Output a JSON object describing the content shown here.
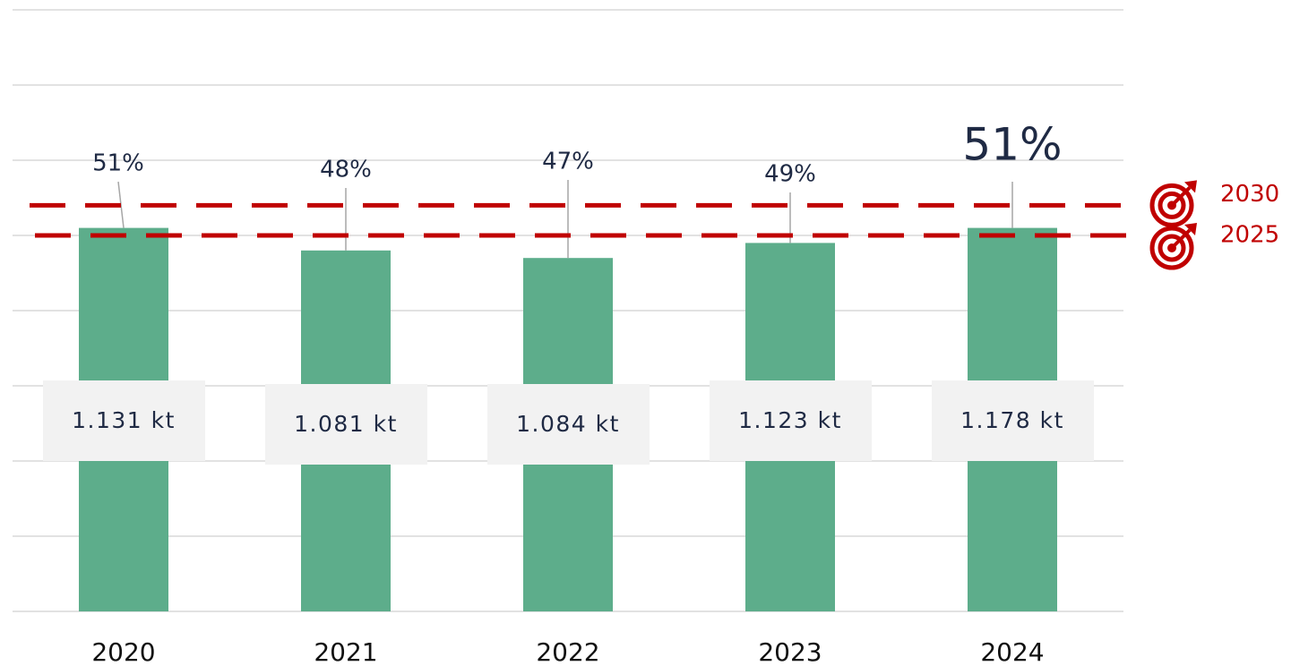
{
  "chart_data": {
    "type": "bar",
    "categories": [
      "2020",
      "2021",
      "2022",
      "2023",
      "2024"
    ],
    "values": [
      51,
      48,
      47,
      49,
      51
    ],
    "value_labels": [
      "51%",
      "48%",
      "47%",
      "49%",
      "51%"
    ],
    "amount_labels": [
      "1.131 kt",
      "1.081 kt",
      "1.084 kt",
      "1.123 kt",
      "1.178 kt"
    ],
    "color": "#5dad8b",
    "ylim": [
      0,
      80
    ],
    "yticks": [
      0,
      10,
      20,
      30,
      40,
      50,
      60,
      70,
      80
    ],
    "grid": true,
    "targets": [
      {
        "label": "2030",
        "value": 54
      },
      {
        "label": "2025",
        "value": 50
      }
    ],
    "target_color": "#c00000"
  }
}
